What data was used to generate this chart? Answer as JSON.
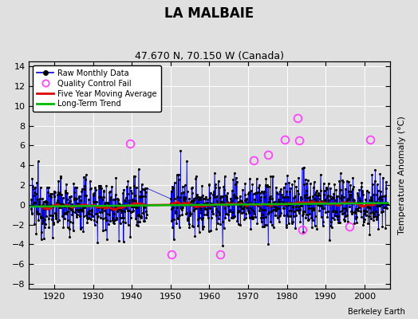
{
  "title": "LA MALBAIE",
  "subtitle": "47.670 N, 70.150 W (Canada)",
  "ylabel": "Temperature Anomaly (°C)",
  "watermark": "Berkeley Earth",
  "xlim": [
    1913.5,
    2006.5
  ],
  "ylim": [
    -8.5,
    14.5
  ],
  "yticks": [
    -8,
    -6,
    -4,
    -2,
    0,
    2,
    4,
    6,
    8,
    10,
    12,
    14
  ],
  "xticks": [
    1920,
    1930,
    1940,
    1950,
    1960,
    1970,
    1980,
    1990,
    2000
  ],
  "bg_color": "#e0e0e0",
  "grid_color": "#ffffff",
  "line_color": "#0000dd",
  "ma_color": "#dd0000",
  "trend_color": "#00bb00",
  "qc_color": "#ff44ff",
  "start_year": 1914,
  "end_year": 2005,
  "gap_start": 1944,
  "gap_end": 1950,
  "seed": 12345
}
